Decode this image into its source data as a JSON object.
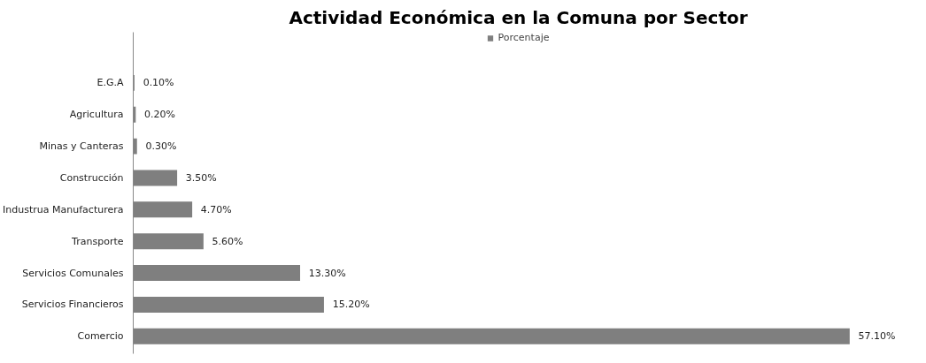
{
  "chart_data": {
    "type": "bar",
    "orientation": "horizontal",
    "title": "Actividad Económica en la Comuna por Sector",
    "categories": [
      "E.G.A",
      "Agricultura",
      "Minas y Canteras",
      "Construcción",
      "Industrua Manufacturera",
      "Transporte",
      "Servicios Comunales",
      "Servicios Financieros",
      "Comercio"
    ],
    "series": [
      {
        "name": "Porcentaje",
        "color": "#7f7f7f",
        "values": [
          0.1,
          0.2,
          0.3,
          3.5,
          4.7,
          5.6,
          13.3,
          15.2,
          57.1
        ],
        "value_labels": [
          "0.10%",
          "0.20%",
          "0.30%",
          "3.50%",
          "4.70%",
          "5.60%",
          "13.30%",
          "15.20%",
          "57.10%"
        ]
      }
    ],
    "legend": "top",
    "grid": false
  }
}
